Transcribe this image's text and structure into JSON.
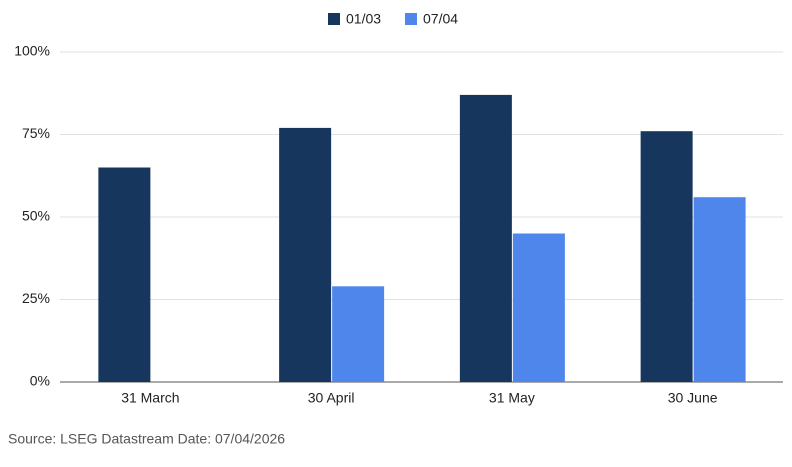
{
  "chart_data": {
    "type": "bar",
    "categories": [
      "31 March",
      "30 April",
      "31 May",
      "30 June"
    ],
    "series": [
      {
        "name": "01/03",
        "color": "#17365d",
        "values": [
          65,
          77,
          87,
          76
        ]
      },
      {
        "name": "07/04",
        "color": "#4f86ec",
        "values": [
          null,
          29,
          45,
          56
        ]
      }
    ],
    "ylim": [
      0,
      100
    ],
    "yticks": [
      {
        "value": 0,
        "label": "0%"
      },
      {
        "value": 25,
        "label": "25%"
      },
      {
        "value": 50,
        "label": "50%"
      },
      {
        "value": 75,
        "label": "75%"
      },
      {
        "value": 100,
        "label": "100%"
      }
    ],
    "grid": true,
    "legend": "top",
    "source": "Source: LSEG Datastream Date: 07/04/2026"
  }
}
